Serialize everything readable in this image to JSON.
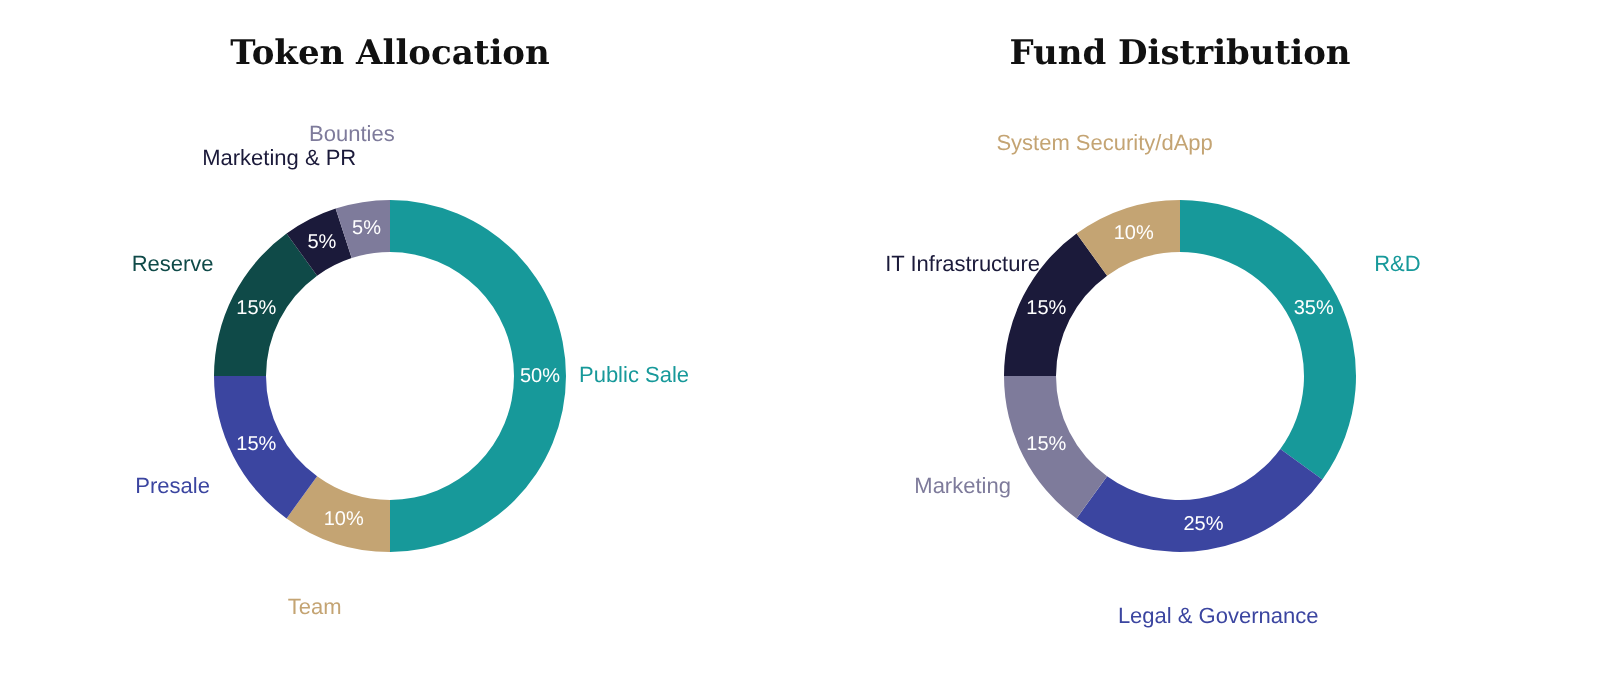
{
  "chart_data": [
    {
      "type": "donut",
      "title": "Token Allocation",
      "categories": [
        "Public Sale",
        "Team",
        "Presale",
        "Reserve",
        "Marketing & PR",
        "Bounties"
      ],
      "values": [
        50,
        10,
        15,
        15,
        5,
        5
      ],
      "value_labels": [
        "50%",
        "10%",
        "15%",
        "15%",
        "5%",
        "5%"
      ],
      "colors": [
        "#17999a",
        "#c4a473",
        "#3b45a0",
        "#0f4a48",
        "#1b1a3a",
        "#7e7b9b"
      ],
      "legend": false
    },
    {
      "type": "donut",
      "title": "Fund Distribution",
      "categories": [
        "R&D",
        "Legal & Governance",
        "Marketing",
        "IT Infrastructure",
        "System Security/dApp"
      ],
      "values": [
        35,
        25,
        15,
        15,
        10
      ],
      "value_labels": [
        "35%",
        "25%",
        "15%",
        "15%",
        "10%"
      ],
      "colors": [
        "#17999a",
        "#3b45a0",
        "#7e7b9b",
        "#1b1a3a",
        "#c4a473"
      ],
      "legend": false
    }
  ]
}
